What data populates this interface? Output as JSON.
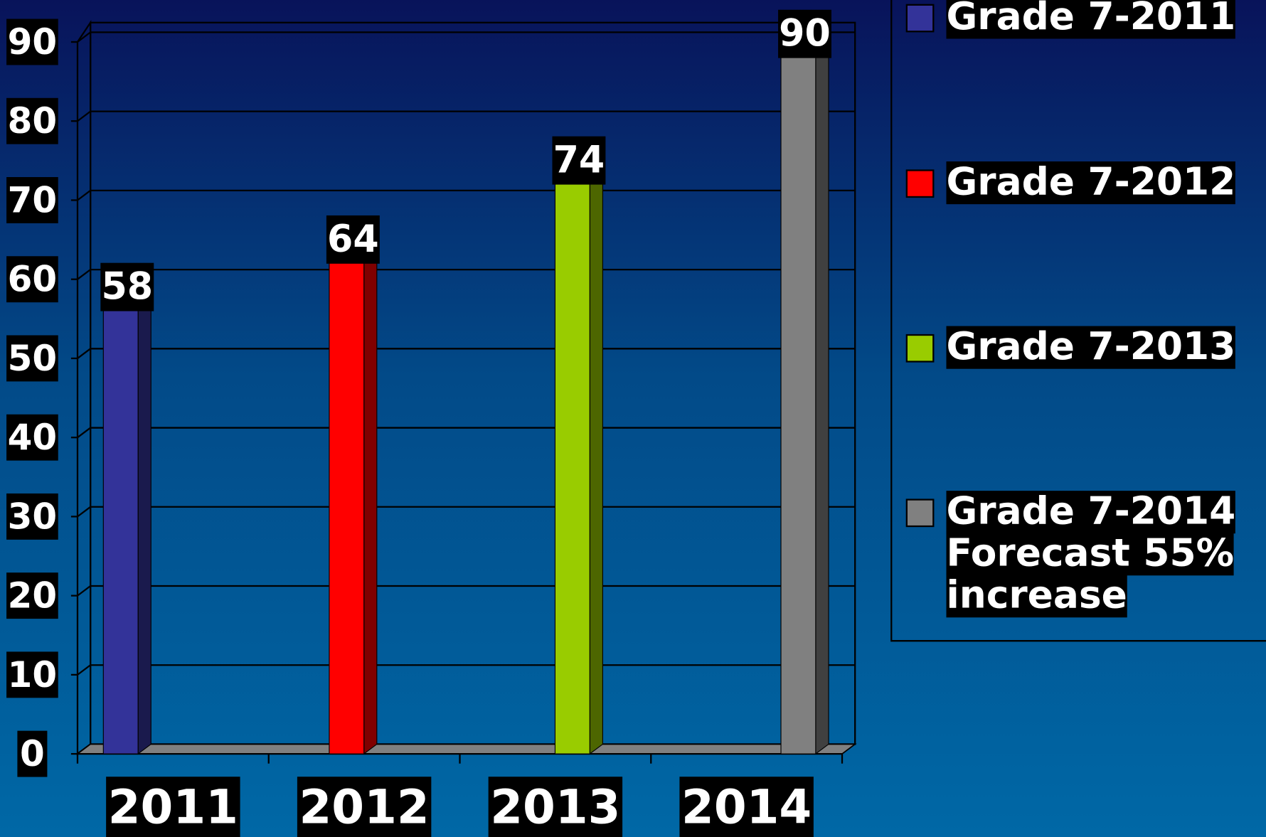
{
  "chart_data": {
    "type": "bar",
    "categories": [
      "2011",
      "2012",
      "2013",
      "2014"
    ],
    "series": [
      {
        "name": "Grade 7-2011",
        "color": "#333399",
        "values": [
          58,
          null,
          null,
          null
        ]
      },
      {
        "name": "Grade 7-2012",
        "color": "#ff0000",
        "values": [
          null,
          64,
          null,
          null
        ]
      },
      {
        "name": "Grade 7-2013",
        "color": "#99cc00",
        "values": [
          null,
          null,
          74,
          null
        ]
      },
      {
        "name": "Grade 7-2014 Forecast 55% increase",
        "color": "#808080",
        "values": [
          null,
          null,
          null,
          90
        ]
      }
    ],
    "ylim": [
      0,
      90
    ],
    "yticks": [
      0,
      10,
      20,
      30,
      40,
      50,
      60,
      70,
      80,
      90
    ],
    "grid": true,
    "legend": "right"
  }
}
